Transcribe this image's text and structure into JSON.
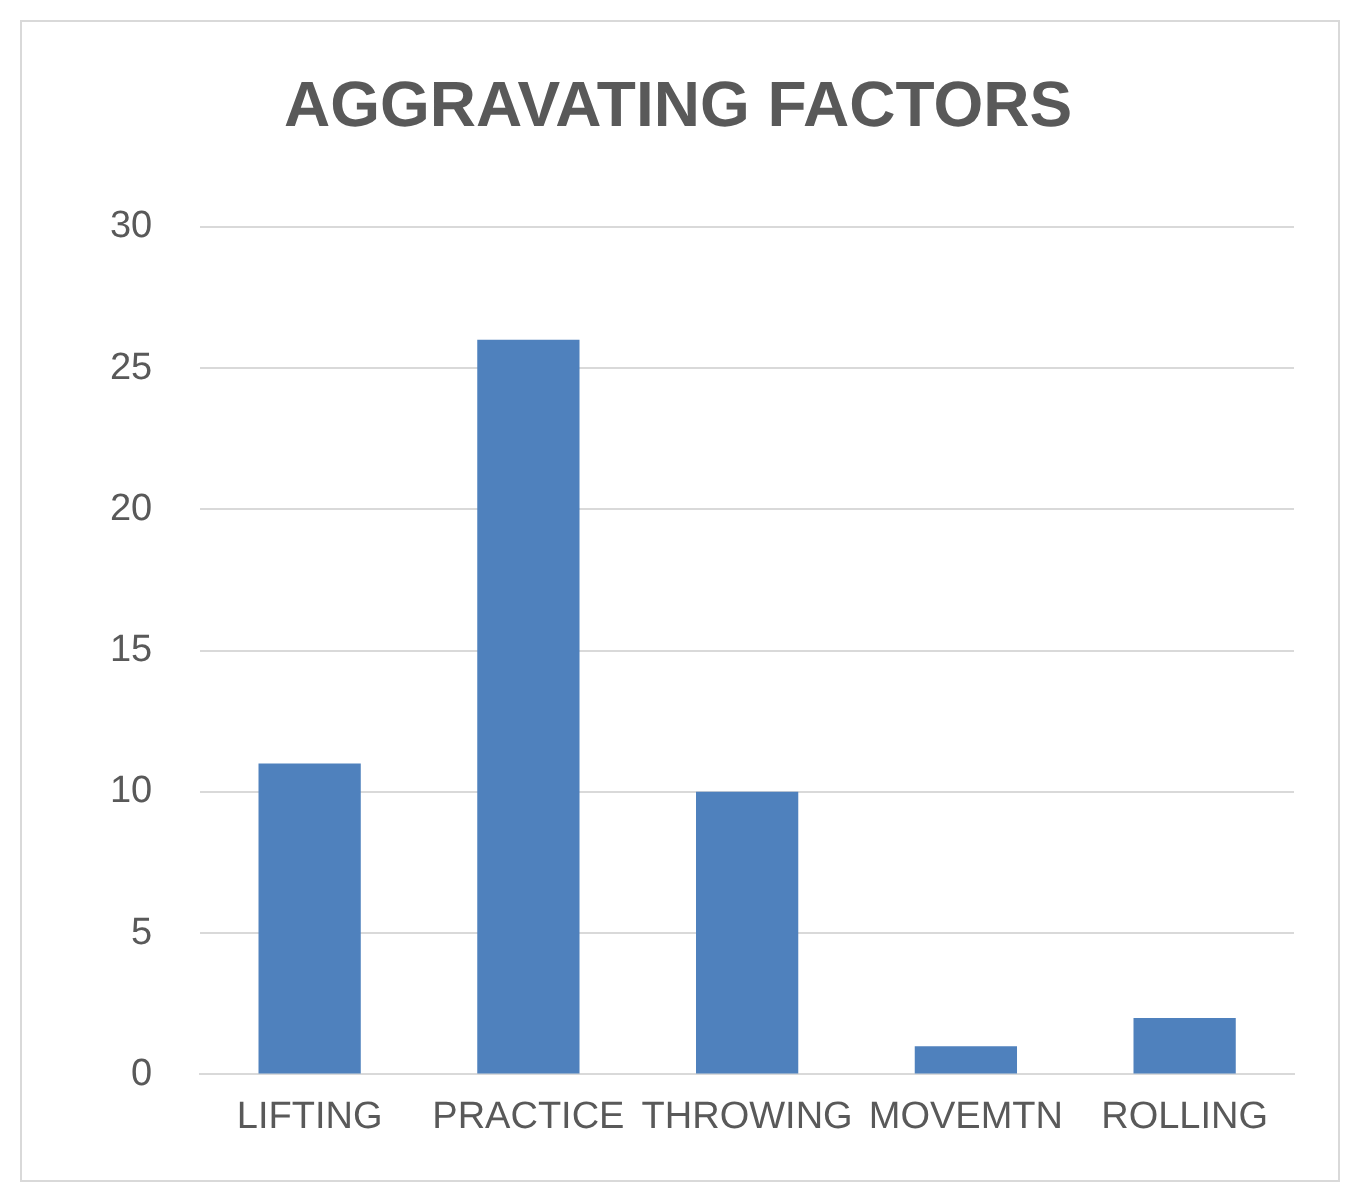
{
  "chart_data": {
    "type": "bar",
    "title": "AGGRAVATING FACTORS",
    "categories": [
      "LIFTING",
      "PRACTICE",
      "THROWING",
      "MOVEMTN",
      "ROLLING"
    ],
    "values": [
      11,
      26,
      10,
      1,
      2
    ],
    "color": "#4f81bd",
    "ylim": [
      0,
      30
    ],
    "yticks": [
      0,
      5,
      10,
      15,
      20,
      25,
      30
    ],
    "grid": "y",
    "legend": false
  }
}
